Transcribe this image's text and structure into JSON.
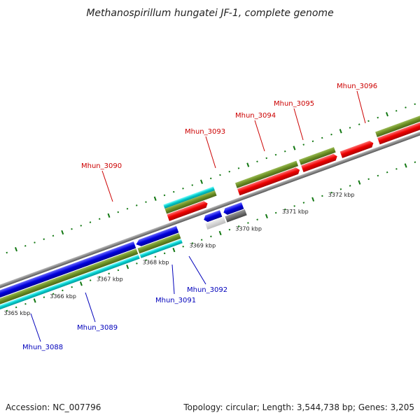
{
  "title": "Methanospirillum hungatei JF-1, complete genome",
  "footer": {
    "accession": "Accession: NC_007796",
    "summary": "Topology: circular; Length: 3,544,738 bp; Genes: 3,205"
  },
  "ticks": [
    "3365 kbp",
    "3366 kbp",
    "3367 kbp",
    "3368 kbp",
    "3369 kbp",
    "3370 kbp",
    "3371 kbp",
    "3372 kbp"
  ],
  "genes_forward": [
    "Mhun_3090",
    "Mhun_3093",
    "Mhun_3094",
    "Mhun_3095",
    "Mhun_3096"
  ],
  "genes_reverse": [
    "Mhun_3088",
    "Mhun_3089",
    "Mhun_3091",
    "Mhun_3092"
  ],
  "colors": {
    "forward_cds": "#ee0000",
    "reverse_cds": "#0000dd",
    "gene_track": "#6b8e23",
    "rna_track": "#00cccc",
    "backbone": "#888888",
    "tick_mark": "#117711",
    "pseudo_light": "#cccccc",
    "pseudo_dark": "#666666",
    "faded_pink": "#f4a0a0"
  }
}
